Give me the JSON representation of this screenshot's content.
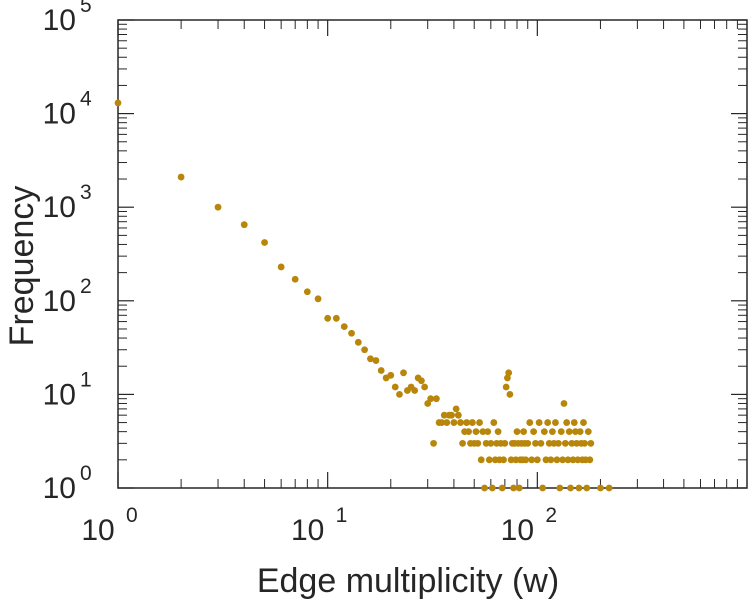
{
  "chart_data": {
    "type": "scatter",
    "title": "",
    "xlabel": "Edge multiplicity (w)",
    "ylabel": "Frequency",
    "xscale": "log",
    "yscale": "log",
    "xlim": [
      1,
      1000
    ],
    "ylim": [
      1,
      100000
    ],
    "grid": false,
    "marker_color": "#b8860b",
    "axis_color": "#262626",
    "x_ticks": [
      {
        "base": "10",
        "exp": "0",
        "value": 1
      },
      {
        "base": "10",
        "exp": "1",
        "value": 10
      },
      {
        "base": "10",
        "exp": "2",
        "value": 100
      }
    ],
    "y_ticks": [
      {
        "base": "10",
        "exp": "0",
        "value": 1
      },
      {
        "base": "10",
        "exp": "1",
        "value": 10
      },
      {
        "base": "10",
        "exp": "2",
        "value": 100
      },
      {
        "base": "10",
        "exp": "3",
        "value": 1000
      },
      {
        "base": "10",
        "exp": "4",
        "value": 10000
      },
      {
        "base": "10",
        "exp": "5",
        "value": 100000
      }
    ],
    "series": [
      {
        "name": "edge multiplicity",
        "points": [
          [
            1,
            13000
          ],
          [
            2,
            2100
          ],
          [
            3,
            1000
          ],
          [
            4,
            650
          ],
          [
            5,
            420
          ],
          [
            6,
            230
          ],
          [
            7,
            170
          ],
          [
            8,
            125
          ],
          [
            9,
            105
          ],
          [
            10,
            65
          ],
          [
            11,
            65
          ],
          [
            12,
            53
          ],
          [
            13,
            45
          ],
          [
            14,
            36
          ],
          [
            15,
            30
          ],
          [
            16,
            24
          ],
          [
            17,
            23
          ],
          [
            18,
            18
          ],
          [
            19,
            15
          ],
          [
            20,
            16
          ],
          [
            21,
            12
          ],
          [
            22,
            10
          ],
          [
            23,
            17
          ],
          [
            24,
            11
          ],
          [
            25,
            12
          ],
          [
            26,
            11
          ],
          [
            27,
            15
          ],
          [
            28,
            14
          ],
          [
            29,
            12
          ],
          [
            30,
            8
          ],
          [
            31,
            9
          ],
          [
            32,
            3
          ],
          [
            33,
            9
          ],
          [
            34,
            5
          ],
          [
            35,
            5
          ],
          [
            36,
            6
          ],
          [
            37,
            5
          ],
          [
            38,
            6
          ],
          [
            39,
            6
          ],
          [
            40,
            5
          ],
          [
            41,
            7
          ],
          [
            42,
            6
          ],
          [
            43,
            5
          ],
          [
            44,
            3
          ],
          [
            45,
            4
          ],
          [
            46,
            5
          ],
          [
            47,
            4
          ],
          [
            48,
            3
          ],
          [
            49,
            5
          ],
          [
            50,
            3
          ],
          [
            51,
            4
          ],
          [
            52,
            3
          ],
          [
            53,
            5
          ],
          [
            54,
            2
          ],
          [
            55,
            4
          ],
          [
            56,
            1
          ],
          [
            57,
            3
          ],
          [
            58,
            4
          ],
          [
            59,
            2
          ],
          [
            60,
            3
          ],
          [
            61,
            1
          ],
          [
            62,
            5
          ],
          [
            63,
            2
          ],
          [
            64,
            3
          ],
          [
            65,
            4
          ],
          [
            66,
            2
          ],
          [
            67,
            3
          ],
          [
            68,
            1
          ],
          [
            69,
            2
          ],
          [
            70,
            3
          ],
          [
            71,
            12
          ],
          [
            72,
            15
          ],
          [
            73,
            17
          ],
          [
            74,
            10
          ],
          [
            75,
            2
          ],
          [
            76,
            3
          ],
          [
            77,
            1
          ],
          [
            78,
            3
          ],
          [
            79,
            2
          ],
          [
            80,
            4
          ],
          [
            81,
            3
          ],
          [
            82,
            1
          ],
          [
            83,
            2
          ],
          [
            84,
            3
          ],
          [
            85,
            2
          ],
          [
            86,
            4
          ],
          [
            87,
            3
          ],
          [
            88,
            2
          ],
          [
            90,
            3
          ],
          [
            92,
            5
          ],
          [
            94,
            2
          ],
          [
            96,
            4
          ],
          [
            98,
            3
          ],
          [
            100,
            2
          ],
          [
            102,
            5
          ],
          [
            104,
            3
          ],
          [
            106,
            1
          ],
          [
            108,
            4
          ],
          [
            110,
            2
          ],
          [
            112,
            5
          ],
          [
            114,
            3
          ],
          [
            116,
            2
          ],
          [
            118,
            4
          ],
          [
            120,
            3
          ],
          [
            122,
            5
          ],
          [
            124,
            2
          ],
          [
            126,
            3
          ],
          [
            128,
            1
          ],
          [
            130,
            4
          ],
          [
            132,
            2
          ],
          [
            134,
            8
          ],
          [
            136,
            3
          ],
          [
            138,
            5
          ],
          [
            140,
            2
          ],
          [
            142,
            4
          ],
          [
            144,
            1
          ],
          [
            146,
            3
          ],
          [
            148,
            2
          ],
          [
            150,
            5
          ],
          [
            152,
            4
          ],
          [
            154,
            3
          ],
          [
            156,
            2
          ],
          [
            158,
            1
          ],
          [
            160,
            4
          ],
          [
            162,
            3
          ],
          [
            164,
            2
          ],
          [
            166,
            5
          ],
          [
            168,
            3
          ],
          [
            170,
            2
          ],
          [
            172,
            1
          ],
          [
            175,
            4
          ],
          [
            178,
            2
          ],
          [
            180,
            3
          ],
          [
            200,
            1
          ],
          [
            220,
            1
          ]
        ]
      }
    ]
  }
}
